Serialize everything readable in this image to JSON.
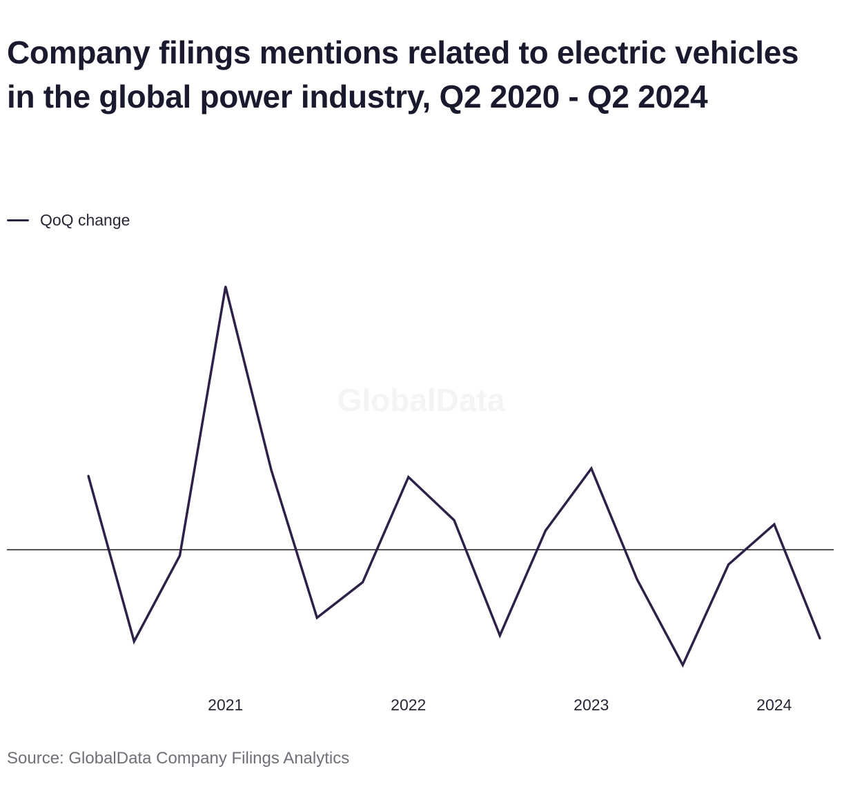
{
  "chart_data": {
    "type": "line",
    "title": "Company filings mentions related to electric vehicles in the global power industry, Q2 2020 - Q2 2024",
    "xlabel": "",
    "ylabel": "",
    "x": [
      "Q2 2020",
      "Q3 2020",
      "Q4 2020",
      "Q1 2021",
      "Q2 2021",
      "Q3 2021",
      "Q4 2021",
      "Q1 2022",
      "Q2 2022",
      "Q3 2022",
      "Q4 2022",
      "Q1 2023",
      "Q2 2023",
      "Q3 2023",
      "Q4 2023",
      "Q1 2024",
      "Q2 2024"
    ],
    "x_tick_labels": [
      {
        "label": "2021",
        "at": "Q1 2021"
      },
      {
        "label": "2022",
        "at": "Q1 2022"
      },
      {
        "label": "2023",
        "at": "Q1 2023"
      },
      {
        "label": "2024",
        "at": "Q1 2024"
      }
    ],
    "series": [
      {
        "name": "QoQ change",
        "color": "#2e2148",
        "values": [
          0.25,
          -0.31,
          -0.02,
          0.89,
          0.27,
          -0.23,
          -0.11,
          0.246,
          0.1,
          -0.29,
          0.065,
          0.275,
          -0.1,
          -0.39,
          -0.05,
          0.086,
          -0.3
        ]
      }
    ],
    "ylim": [
      -0.45,
      0.95
    ],
    "baseline": 0,
    "grid": false,
    "legend_position": "top-left",
    "watermark": "GlobalData"
  },
  "source": "Source: GlobalData Company Filings Analytics"
}
